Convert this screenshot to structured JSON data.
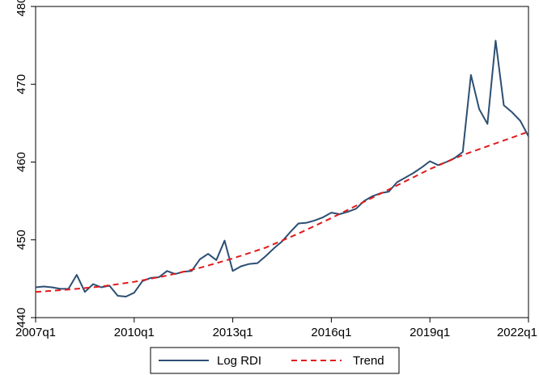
{
  "chart_data": {
    "type": "line",
    "title": "",
    "xlabel": "",
    "ylabel": "",
    "x_ticks": [
      "2007q1",
      "2010q1",
      "2013q1",
      "2016q1",
      "2019q1",
      "2022q1"
    ],
    "y_ticks": [
      440,
      450,
      460,
      470,
      480
    ],
    "ylim": [
      440,
      480
    ],
    "xlim": [
      "2007q1",
      "2022q1"
    ],
    "grid": false,
    "legend_position": "bottom",
    "series": [
      {
        "name": "Log RDI",
        "color": "#2c4f73",
        "style": "solid",
        "x": [
          "2007q1",
          "2007q2",
          "2007q3",
          "2007q4",
          "2008q1",
          "2008q2",
          "2008q3",
          "2008q4",
          "2009q1",
          "2009q2",
          "2009q3",
          "2009q4",
          "2010q1",
          "2010q2",
          "2010q3",
          "2010q4",
          "2011q1",
          "2011q2",
          "2011q3",
          "2011q4",
          "2012q1",
          "2012q2",
          "2012q3",
          "2012q4",
          "2013q1",
          "2013q2",
          "2013q3",
          "2013q4",
          "2014q1",
          "2014q2",
          "2014q3",
          "2014q4",
          "2015q1",
          "2015q2",
          "2015q3",
          "2015q4",
          "2016q1",
          "2016q2",
          "2016q3",
          "2016q4",
          "2017q1",
          "2017q2",
          "2017q3",
          "2017q4",
          "2018q1",
          "2018q2",
          "2018q3",
          "2018q4",
          "2019q1",
          "2019q2",
          "2019q3",
          "2019q4",
          "2020q1",
          "2020q2",
          "2020q3",
          "2020q4",
          "2021q1",
          "2021q2",
          "2021q3",
          "2021q4",
          "2022q1"
        ],
        "values": [
          443.9,
          444.0,
          443.9,
          443.7,
          443.7,
          445.5,
          443.3,
          444.3,
          443.9,
          444.1,
          442.8,
          442.7,
          443.2,
          444.7,
          445.1,
          445.2,
          446.0,
          445.6,
          445.9,
          446.0,
          447.5,
          448.2,
          447.4,
          449.9,
          446.0,
          446.6,
          446.9,
          447.0,
          447.9,
          448.9,
          449.8,
          451.0,
          452.1,
          452.2,
          452.5,
          452.9,
          453.5,
          453.3,
          453.6,
          454.0,
          455.0,
          455.6,
          456.0,
          456.2,
          457.4,
          458.0,
          458.6,
          459.3,
          460.1,
          459.6,
          460.0,
          460.5,
          461.3,
          471.2,
          466.8,
          464.9,
          475.6,
          467.3,
          466.4,
          465.3,
          463.3
        ]
      },
      {
        "name": "Trend",
        "color": "#e31a1c",
        "style": "dashed",
        "x": [
          "2007q1",
          "2008q1",
          "2009q1",
          "2010q1",
          "2011q1",
          "2012q1",
          "2013q1",
          "2014q1",
          "2015q1",
          "2016q1",
          "2017q1",
          "2018q1",
          "2019q1",
          "2020q1",
          "2021q1",
          "2022q1"
        ],
        "values": [
          443.3,
          443.6,
          444.0,
          444.6,
          445.4,
          446.4,
          447.6,
          449.0,
          450.8,
          452.8,
          454.9,
          457.0,
          459.1,
          460.9,
          462.4,
          463.9
        ]
      }
    ]
  }
}
